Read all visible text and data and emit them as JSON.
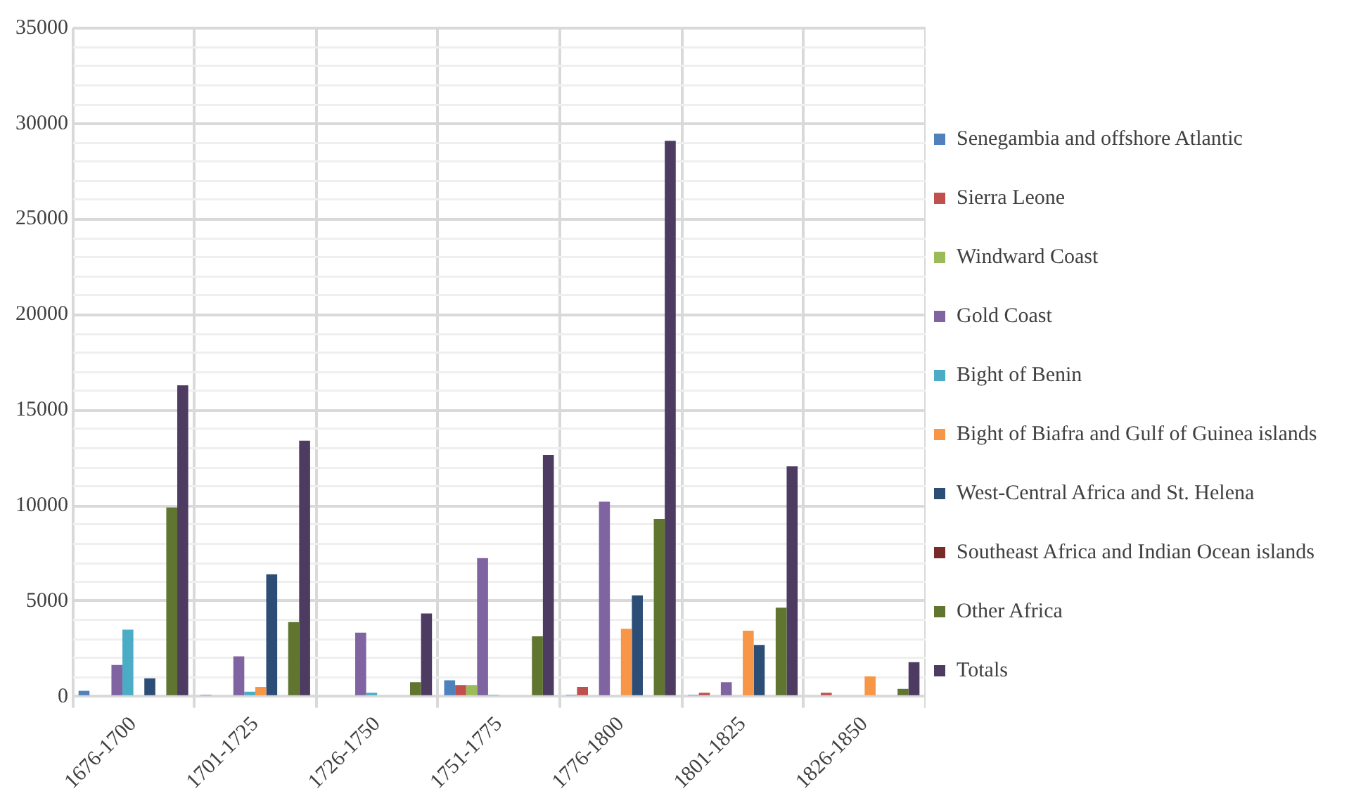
{
  "chart_data": {
    "type": "bar",
    "categories": [
      "1676-1700",
      "1701-1725",
      "1726-1750",
      "1751-1775",
      "1776-1800",
      "1801-1825",
      "1826-1850"
    ],
    "series": [
      {
        "name": "Senegambia and offshore Atlantic",
        "color": "#4f81bd",
        "values": [
          300,
          100,
          0,
          850,
          100,
          100,
          0
        ]
      },
      {
        "name": "Sierra Leone",
        "color": "#c0504d",
        "values": [
          0,
          0,
          0,
          600,
          500,
          200,
          200
        ]
      },
      {
        "name": "Windward Coast",
        "color": "#9bbb59",
        "values": [
          0,
          0,
          0,
          600,
          0,
          0,
          0
        ]
      },
      {
        "name": "Gold Coast",
        "color": "#8064a2",
        "values": [
          1650,
          2100,
          3350,
          7250,
          10200,
          750,
          0
        ]
      },
      {
        "name": "Bight of Benin",
        "color": "#4bacc6",
        "values": [
          3500,
          250,
          200,
          100,
          0,
          0,
          0
        ]
      },
      {
        "name": "Bight of Biafra and Gulf of Guinea islands",
        "color": "#f79646",
        "values": [
          0,
          500,
          0,
          0,
          3550,
          3450,
          1050
        ]
      },
      {
        "name": "West-Central Africa and St. Helena",
        "color": "#2c4d75",
        "values": [
          950,
          6400,
          0,
          0,
          5300,
          2700,
          0
        ]
      },
      {
        "name": "Southeast Africa and Indian Ocean islands",
        "color": "#772c2a",
        "values": [
          0,
          0,
          0,
          0,
          0,
          0,
          0
        ]
      },
      {
        "name": "Other Africa",
        "color": "#5f7530",
        "values": [
          9900,
          3900,
          750,
          3150,
          9300,
          4650,
          400
        ]
      },
      {
        "name": "Totals",
        "color": "#4d3b62",
        "values": [
          16300,
          13400,
          4350,
          12650,
          29100,
          12050,
          1800
        ]
      }
    ],
    "ylim": [
      0,
      35000
    ],
    "yticks": [
      0,
      {
        "value": 1000,
        "label": null
      },
      {
        "value": 2000,
        "label": null
      },
      {
        "value": 3000,
        "label": null
      },
      {
        "value": 4000,
        "label": null
      },
      5000,
      {
        "value": 6000,
        "label": null
      },
      {
        "value": 7000,
        "label": null
      },
      {
        "value": 8000,
        "label": null
      },
      {
        "value": 9000,
        "label": null
      },
      10000,
      {
        "value": 11000,
        "label": null
      },
      {
        "value": 12000,
        "label": null
      },
      {
        "value": 13000,
        "label": null
      },
      {
        "value": 14000,
        "label": null
      },
      15000,
      {
        "value": 16000,
        "label": null
      },
      {
        "value": 17000,
        "label": null
      },
      {
        "value": 18000,
        "label": null
      },
      {
        "value": 19000,
        "label": null
      },
      20000,
      {
        "value": 21000,
        "label": null
      },
      {
        "value": 22000,
        "label": null
      },
      {
        "value": 23000,
        "label": null
      },
      {
        "value": 24000,
        "label": null
      },
      25000,
      {
        "value": 26000,
        "label": null
      },
      {
        "value": 27000,
        "label": null
      },
      {
        "value": 28000,
        "label": null
      },
      {
        "value": 29000,
        "label": null
      },
      30000,
      {
        "value": 31000,
        "label": null
      },
      {
        "value": 32000,
        "label": null
      },
      {
        "value": 33000,
        "label": null
      },
      {
        "value": 34000,
        "label": null
      },
      35000
    ],
    "grid": true,
    "legend": "right"
  }
}
